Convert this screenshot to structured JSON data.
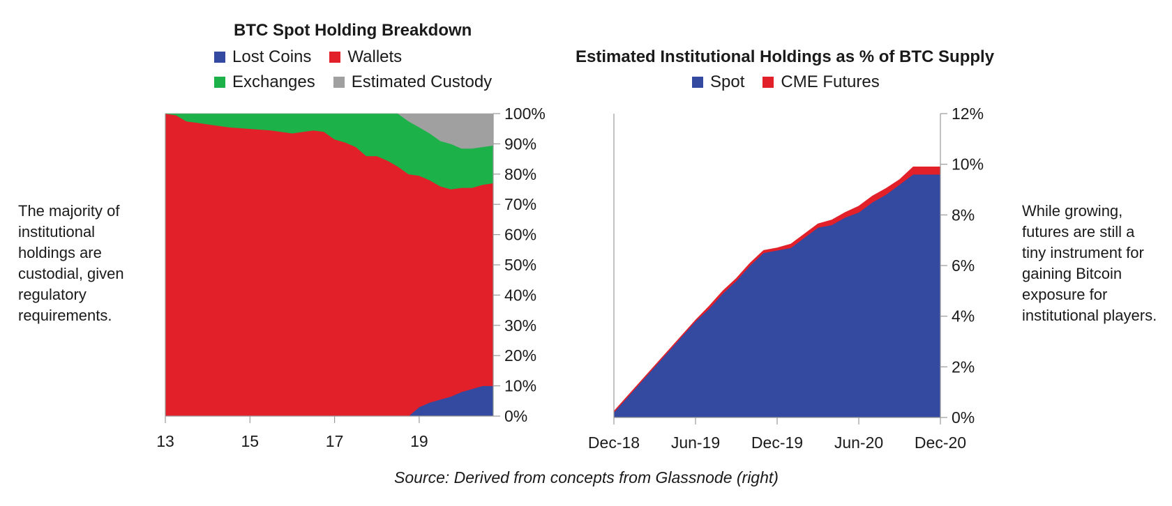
{
  "colors": {
    "lost": "#3449a0",
    "wallets": "#e1202a",
    "exchanges": "#1db14a",
    "custody": "#a0a0a0",
    "spot": "#3449a0",
    "futures": "#e1202a",
    "axis": "#9a9a9a"
  },
  "left_note": "The majority of institutional holdings are custodial, given regulatory requirements.",
  "right_note": "While growing, futures are still a tiny instrument for gaining Bitcoin exposure for institutional players.",
  "source": "Source: Derived from concepts from Glassnode (right)",
  "chart_data": [
    {
      "type": "area",
      "stacked": true,
      "title": "BTC Spot Holding Breakdown",
      "x_ticks": [
        "13",
        "15",
        "17",
        "19"
      ],
      "y_ticks": [
        "0%",
        "10%",
        "20%",
        "30%",
        "40%",
        "50%",
        "60%",
        "70%",
        "80%",
        "90%",
        "100%"
      ],
      "xlim": [
        2013,
        2020.75
      ],
      "ylim": [
        0,
        100
      ],
      "legend": "top",
      "x": [
        2013,
        2013.25,
        2013.5,
        2013.75,
        2014,
        2014.5,
        2015,
        2015.5,
        2016,
        2016.5,
        2016.75,
        2017,
        2017.25,
        2017.5,
        2017.75,
        2018,
        2018.25,
        2018.5,
        2018.75,
        2019,
        2019.25,
        2019.5,
        2019.75,
        2020,
        2020.25,
        2020.5,
        2020.75
      ],
      "series": [
        {
          "name": "Lost Coins",
          "values": [
            0,
            0,
            0,
            0,
            0,
            0,
            0,
            0,
            0,
            0,
            0,
            0,
            0,
            0,
            0,
            0,
            0,
            0,
            0,
            3,
            4.5,
            5.5,
            6.5,
            8,
            9,
            10,
            10
          ]
        },
        {
          "name": "Wallets",
          "values": [
            100,
            99.5,
            97.5,
            97,
            96.5,
            95.5,
            95,
            94.5,
            93.5,
            94.5,
            94,
            91.5,
            90.5,
            89,
            86,
            86,
            84.5,
            82.5,
            80,
            76.5,
            73.5,
            70.5,
            68.5,
            67.5,
            66.5,
            66.5,
            67
          ]
        },
        {
          "name": "Exchanges",
          "values": [
            0,
            0.5,
            2.5,
            3,
            3.5,
            4.5,
            5,
            5.5,
            6.5,
            5.5,
            6,
            8.5,
            9.5,
            11,
            14,
            14,
            15.5,
            17.5,
            17.5,
            16,
            15.5,
            15,
            15,
            13,
            13,
            12.5,
            12.5
          ]
        },
        {
          "name": "Estimated Custody",
          "values": [
            0,
            0,
            0,
            0,
            0,
            0,
            0,
            0,
            0,
            0,
            0,
            0,
            0,
            0,
            0,
            0,
            0,
            0,
            2.5,
            4.5,
            6.5,
            9,
            10,
            11.5,
            11.5,
            11,
            10.5
          ]
        }
      ]
    },
    {
      "type": "area",
      "stacked": true,
      "title": "Estimated Institutional Holdings as % of BTC Supply",
      "x_ticks": [
        "Dec-18",
        "Jun-19",
        "Dec-19",
        "Jun-20",
        "Dec-20"
      ],
      "y_ticks": [
        "0%",
        "2%",
        "4%",
        "6%",
        "8%",
        "10%",
        "12%"
      ],
      "xlim": [
        0,
        24
      ],
      "ylim": [
        0,
        12
      ],
      "legend": "top",
      "x": [
        0,
        1,
        2,
        3,
        4,
        5,
        6,
        7,
        8,
        9,
        10,
        11,
        12,
        13,
        14,
        15,
        16,
        17,
        18,
        19,
        20,
        21,
        22,
        23,
        24
      ],
      "series": [
        {
          "name": "Spot",
          "values": [
            0.2,
            0.8,
            1.4,
            2.0,
            2.6,
            3.2,
            3.8,
            4.3,
            4.9,
            5.4,
            6.0,
            6.5,
            6.6,
            6.7,
            7.1,
            7.5,
            7.6,
            7.9,
            8.1,
            8.5,
            8.8,
            9.2,
            9.6,
            9.6,
            9.6
          ]
        },
        {
          "name": "CME Futures",
          "values": [
            0.05,
            0.05,
            0.05,
            0.05,
            0.05,
            0.05,
            0.05,
            0.1,
            0.1,
            0.1,
            0.1,
            0.1,
            0.1,
            0.15,
            0.15,
            0.15,
            0.2,
            0.2,
            0.25,
            0.25,
            0.25,
            0.2,
            0.3,
            0.3,
            0.3
          ]
        }
      ]
    }
  ]
}
